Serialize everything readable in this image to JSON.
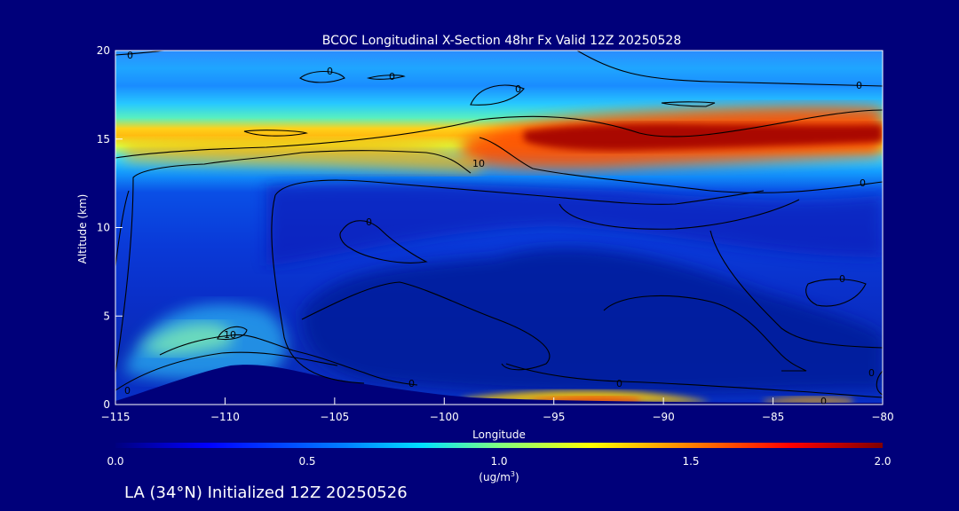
{
  "chart_data": {
    "type": "heatmap",
    "title": "BCOC Longitudinal X-Section 48hr  Fx Valid 12Z 20250528",
    "xlabel": "Longitude",
    "ylabel": "Altitude (km)",
    "xlim": [
      -115,
      -80
    ],
    "ylim": [
      0,
      20
    ],
    "x_ticks": [
      "-115",
      "-110",
      "-105",
      "-100",
      "-95",
      "-90",
      "-85",
      "-80"
    ],
    "y_ticks": [
      "0",
      "5",
      "10",
      "15",
      "20"
    ],
    "colorbar": {
      "min": 0.0,
      "max": 2.0,
      "ticks": [
        "0.0",
        "0.5",
        "1.0",
        "1.5",
        "2.0"
      ],
      "units_label": "(ug/m",
      "units_superscript": "3",
      "units_close": ")",
      "colormap": [
        "#00007f",
        "#0000ff",
        "#0080ff",
        "#00e0ff",
        "#80ff80",
        "#ffff00",
        "#ff8000",
        "#ff0000",
        "#800000"
      ]
    },
    "contour_labels": [
      "0",
      "0",
      "0",
      "0",
      "0",
      "0",
      "0",
      "0",
      "0",
      "0",
      "10",
      "10",
      "0",
      "0",
      "0"
    ],
    "features": [
      {
        "lon_min": -115,
        "lon_max": -80,
        "alt": 14.5,
        "value": 1.05
      },
      {
        "lon_min": -98,
        "lon_max": -82,
        "alt": 14.9,
        "value": 1.9
      },
      {
        "lon_min": -113,
        "lon_max": -109,
        "alt": 3.5,
        "value": 0.95
      },
      {
        "lon_min": -96,
        "lon_max": -88,
        "alt": 0.1,
        "value": 1.4
      }
    ]
  },
  "footer": {
    "caption": "LA (34°N) Initialized 12Z 20250526"
  }
}
